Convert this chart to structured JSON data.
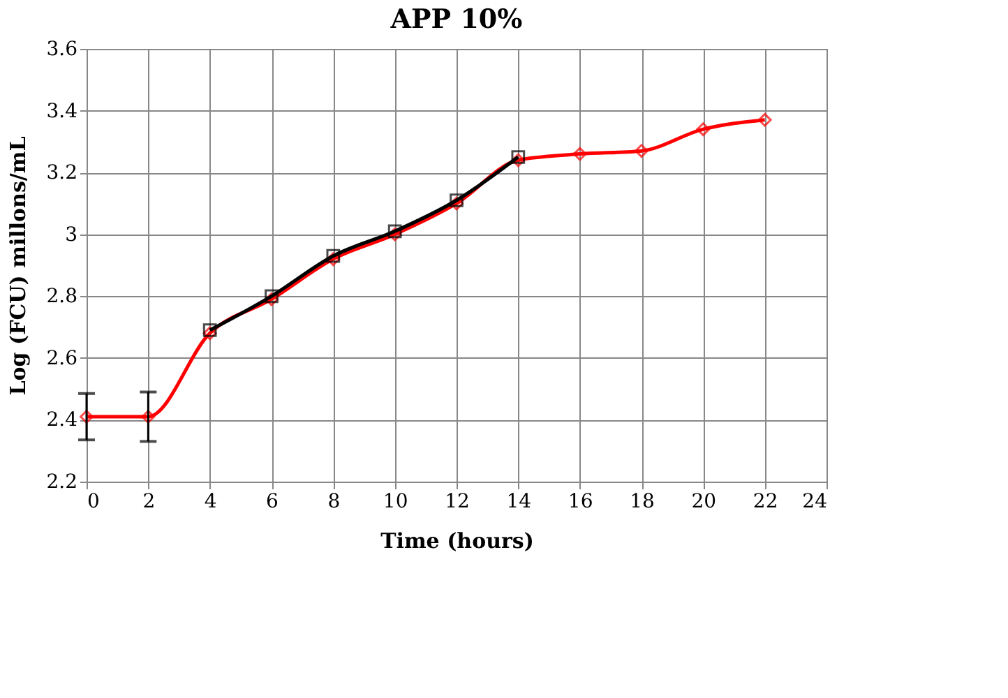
{
  "chart_data": {
    "type": "line",
    "title": "APP 10%",
    "xlabel": "Time (hours)",
    "ylabel": "Log (FCU) millons/mL",
    "xlim": [
      0,
      24
    ],
    "xticks": [
      0,
      2,
      4,
      6,
      8,
      10,
      12,
      14,
      16,
      18,
      20,
      22,
      24
    ],
    "ylim": [
      2.2,
      3.6
    ],
    "yticks": [
      2.2,
      2.4,
      2.6,
      2.8,
      {
        "value": 3,
        "label": "3"
      },
      3.2,
      3.4,
      3.6
    ],
    "grid": true,
    "line_style": "solid",
    "series": [
      {
        "color": "#ff0000",
        "marker": "diamond",
        "x": [
          0,
          2,
          4,
          6,
          8,
          10,
          12,
          14,
          16,
          18,
          20,
          22
        ],
        "values": [
          2.41,
          2.41,
          2.68,
          2.79,
          2.92,
          3.0,
          3.1,
          3.24,
          3.26,
          3.27,
          3.34,
          3.37
        ],
        "errors": [
          0.075,
          0.08,
          null,
          null,
          null,
          null,
          null,
          null,
          null,
          null,
          null,
          null
        ]
      },
      {
        "color": "#000000",
        "marker": "square",
        "x": [
          4,
          6,
          8,
          10,
          12,
          14
        ],
        "values": [
          2.69,
          2.8,
          2.93,
          3.01,
          3.11,
          3.25
        ]
      }
    ]
  }
}
